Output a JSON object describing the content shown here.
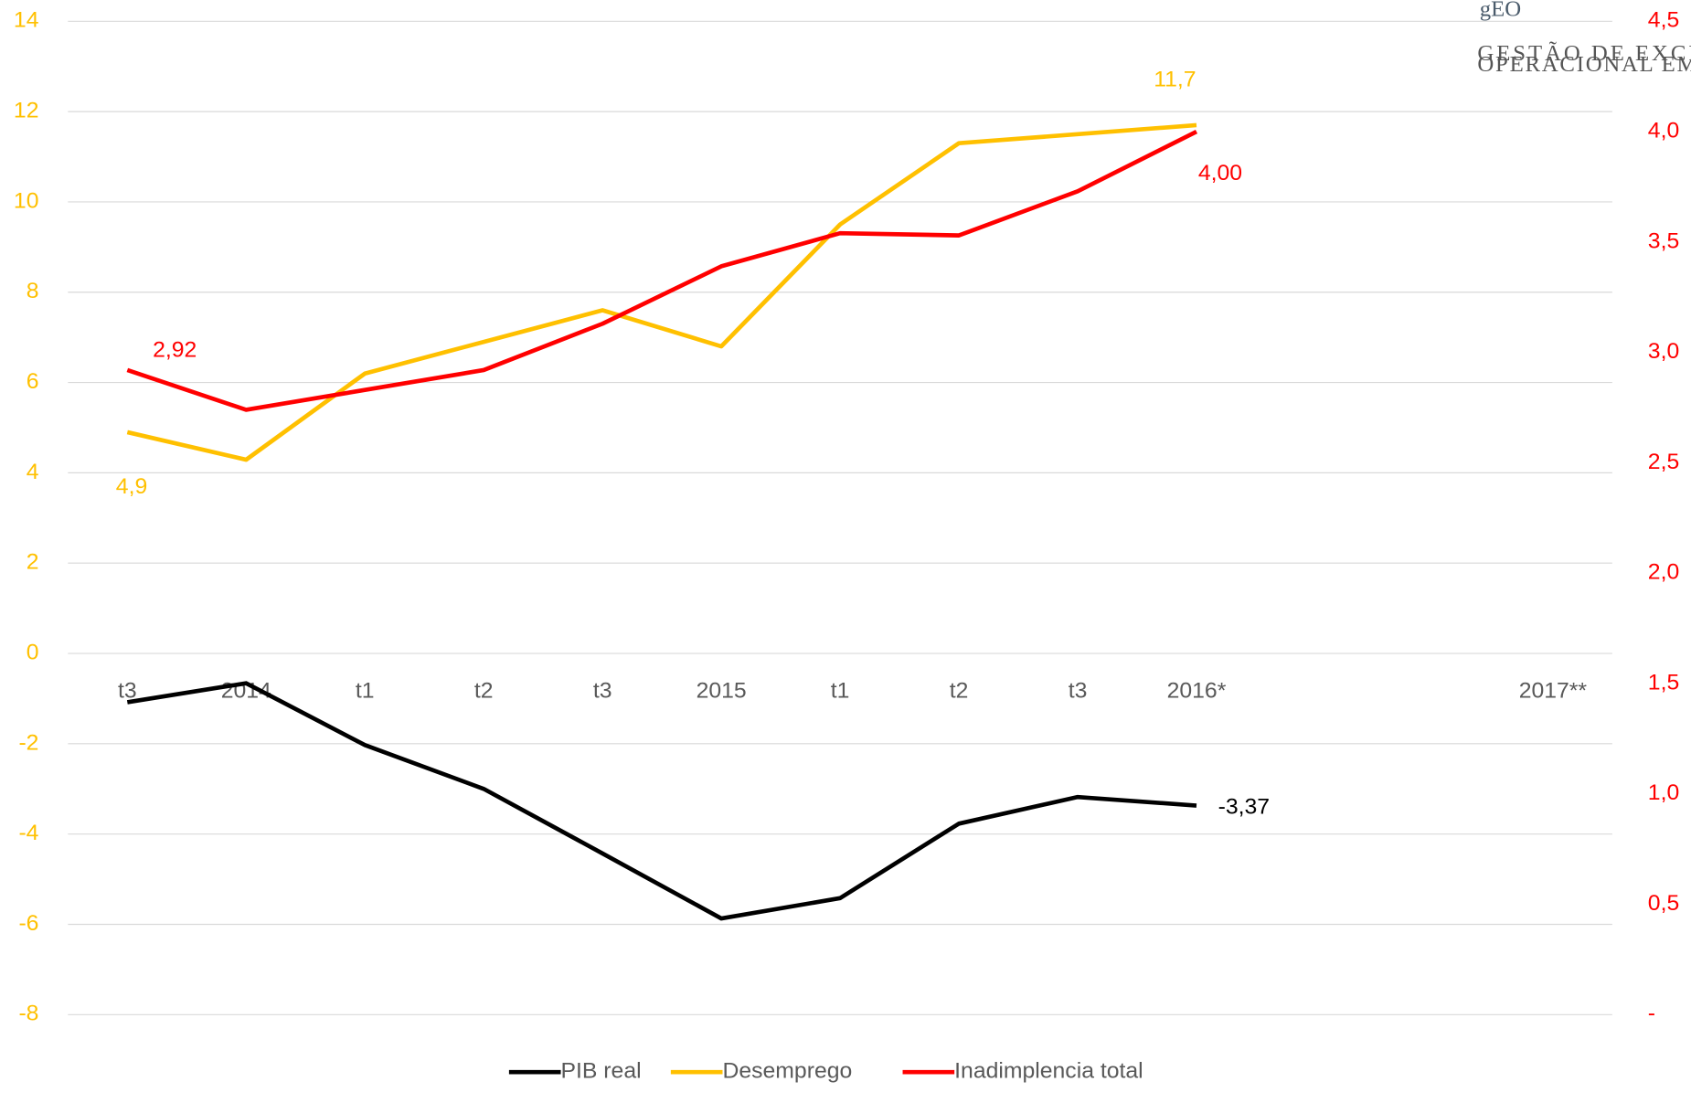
{
  "logo": {
    "lines": [
      "GESTÃO DE EXCELÊNCIA",
      "OPERACIONAL EM COBRANÇA"
    ]
  },
  "chart_data": {
    "type": "line",
    "categories": [
      "t3",
      "2014",
      "t1",
      "t2",
      "t3",
      "2015",
      "t1",
      "t2",
      "t3",
      "2016*",
      null,
      null,
      "2017**"
    ],
    "series": [
      {
        "name": "PIB real",
        "color": "#000000",
        "values": [
          -1.08,
          -0.66,
          -2.03,
          -3.0,
          -4.43,
          -5.87,
          -5.42,
          -3.77,
          -3.18,
          -3.37,
          null,
          null,
          null
        ],
        "value_labels": [
          null,
          null,
          null,
          null,
          null,
          null,
          null,
          null,
          null,
          "-3,37",
          null,
          null,
          null
        ]
      },
      {
        "name": "Desemprego",
        "color": "#FFC000",
        "values": [
          4.9,
          4.29,
          6.2,
          6.9,
          7.6,
          6.8,
          9.5,
          11.3,
          11.5,
          11.7,
          null,
          null,
          null
        ],
        "value_labels": [
          "4,9",
          null,
          null,
          null,
          null,
          null,
          null,
          null,
          null,
          "11,7",
          null,
          null,
          null
        ]
      },
      {
        "name": "Inadimplencia total",
        "color": "#FF0000",
        "axis": "y2",
        "values": [
          2.92,
          2.74,
          2.83,
          2.92,
          3.13,
          3.39,
          3.54,
          3.53,
          3.73,
          4.0,
          null,
          null,
          null
        ],
        "value_labels": [
          "2,92",
          null,
          null,
          null,
          null,
          null,
          null,
          null,
          null,
          "4,00",
          null,
          null,
          null
        ]
      }
    ],
    "ylim": [
      -8,
      14
    ],
    "yticks": [
      -8,
      -6,
      -4,
      -2,
      0,
      2,
      4,
      6,
      8,
      10,
      12,
      14
    ],
    "ycolor": "#FFC000",
    "y2lim": [
      0,
      4.5
    ],
    "y2ticks": [
      {
        "value": 0,
        "label": "-"
      },
      {
        "value": 0.5,
        "label": "0,5"
      },
      {
        "value": 1,
        "label": "1,0"
      },
      {
        "value": 1.5,
        "label": "1,5"
      },
      {
        "value": 2,
        "label": "2,0"
      },
      {
        "value": 2.5,
        "label": "2,5"
      },
      {
        "value": 3,
        "label": "3,0"
      },
      {
        "value": 3.5,
        "label": "3,5"
      },
      {
        "value": 4,
        "label": "4,0"
      },
      {
        "value": 4.5,
        "label": "4,5"
      }
    ],
    "y2color": "#FF0000",
    "grid": true,
    "legend": "bottom"
  }
}
